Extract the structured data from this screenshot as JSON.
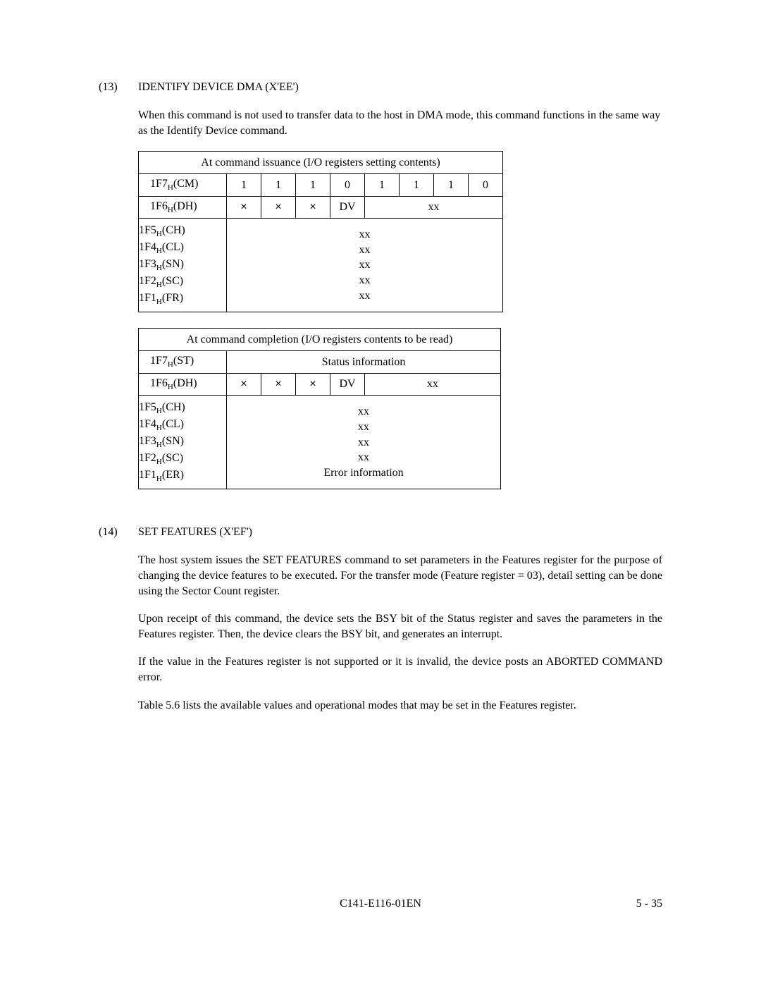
{
  "section13": {
    "num": "(13)",
    "title": "IDENTIFY DEVICE DMA (X'EE')",
    "para1": "When this command is not used to transfer data to the host in DMA mode, this command functions in the same way as the Identify Device command."
  },
  "table1": {
    "caption": "At command issuance (I/O registers setting contents)",
    "row_cm": {
      "label_a": "1F7",
      "label_sub": "H",
      "label_b": "(CM)",
      "bits": [
        "1",
        "1",
        "1",
        "0",
        "1",
        "1",
        "1",
        "0"
      ]
    },
    "row_dh": {
      "label_a": "1F6",
      "label_sub": "H",
      "label_b": "(DH)",
      "c1": "×",
      "c2": "×",
      "c3": "×",
      "c4": "DV",
      "c58": "xx"
    },
    "multi": {
      "l1a": "1F5",
      "l1s": "H",
      "l1b": "(CH)",
      "v1": "xx",
      "l2a": "1F4",
      "l2s": "H",
      "l2b": "(CL)",
      "v2": "xx",
      "l3a": "1F3",
      "l3s": "H",
      "l3b": "(SN)",
      "v3": "xx",
      "l4a": "1F2",
      "l4s": "H",
      "l4b": "(SC)",
      "v4": "xx",
      "l5a": "1F1",
      "l5s": "H",
      "l5b": "(FR)",
      "v5": "xx"
    }
  },
  "table2": {
    "caption": "At command completion (I/O registers contents to be read)",
    "row_st": {
      "label_a": "1F7",
      "label_sub": "H",
      "label_b": "(ST)",
      "value": "Status information"
    },
    "row_dh": {
      "label_a": "1F6",
      "label_sub": "H",
      "label_b": "(DH)",
      "c1": "×",
      "c2": "×",
      "c3": "×",
      "c4": "DV",
      "c58": "xx"
    },
    "multi": {
      "l1a": "1F5",
      "l1s": "H",
      "l1b": "(CH)",
      "v1": "xx",
      "l2a": "1F4",
      "l2s": "H",
      "l2b": "(CL)",
      "v2": "xx",
      "l3a": "1F3",
      "l3s": "H",
      "l3b": "(SN)",
      "v3": "xx",
      "l4a": "1F2",
      "l4s": "H",
      "l4b": "(SC)",
      "v4": "xx",
      "l5a": "1F1",
      "l5s": "H",
      "l5b": "(ER)",
      "v5": "Error information"
    }
  },
  "section14": {
    "num": "(14)",
    "title": "SET FEATURES (X'EF')",
    "para1": "The host system issues the SET FEATURES command to set parameters in the Features register for the purpose of changing the device features to be executed.  For the transfer mode (Feature register = 03), detail setting can be done using the Sector Count register.",
    "para2": "Upon receipt of this command, the device sets the BSY bit of the Status register and saves the parameters in the Features register.  Then, the device clears the BSY bit, and generates an interrupt.",
    "para3": "If the value in the Features register is not supported or it is invalid, the device posts an ABORTED COMMAND error.",
    "para4": "Table 5.6 lists the available values and operational modes that may be set in the Features register."
  },
  "footer": {
    "center": "C141-E116-01EN",
    "right": "5 - 35"
  }
}
